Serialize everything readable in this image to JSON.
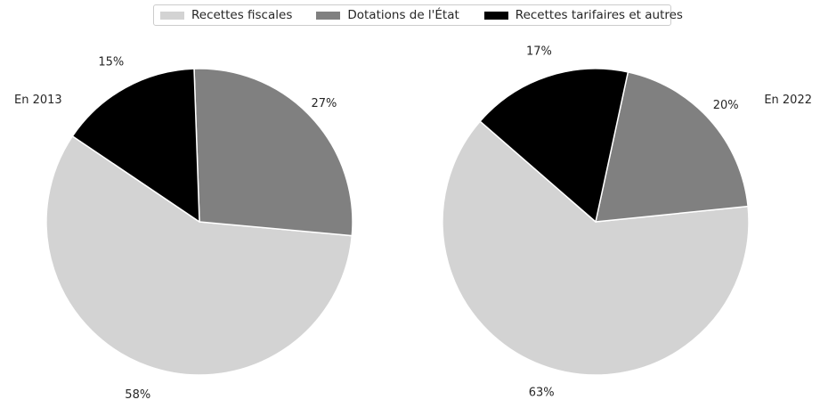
{
  "legend": {
    "items": [
      {
        "label": "Recettes fiscales",
        "color": "#d3d3d3"
      },
      {
        "label": "Dotations de l'État",
        "color": "#808080"
      },
      {
        "label": "Recettes tarifaires et autres",
        "color": "#000000"
      }
    ]
  },
  "chart_data": [
    {
      "type": "pie",
      "title": "En 2013",
      "categories": [
        "Recettes fiscales",
        "Dotations de l'État",
        "Recettes tarifaires et autres"
      ],
      "values": [
        58,
        27,
        15
      ],
      "labels": [
        "58%",
        "27%",
        "15%"
      ],
      "colors": [
        "#d3d3d3",
        "#808080",
        "#000000"
      ],
      "legend_position": "top-center"
    },
    {
      "type": "pie",
      "title": "En 2022",
      "categories": [
        "Recettes fiscales",
        "Dotations de l'État",
        "Recettes tarifaires et autres"
      ],
      "values": [
        63,
        20,
        17
      ],
      "labels": [
        "63%",
        "20%",
        "17%"
      ],
      "colors": [
        "#d3d3d3",
        "#808080",
        "#000000"
      ],
      "legend_position": "top-center"
    }
  ]
}
